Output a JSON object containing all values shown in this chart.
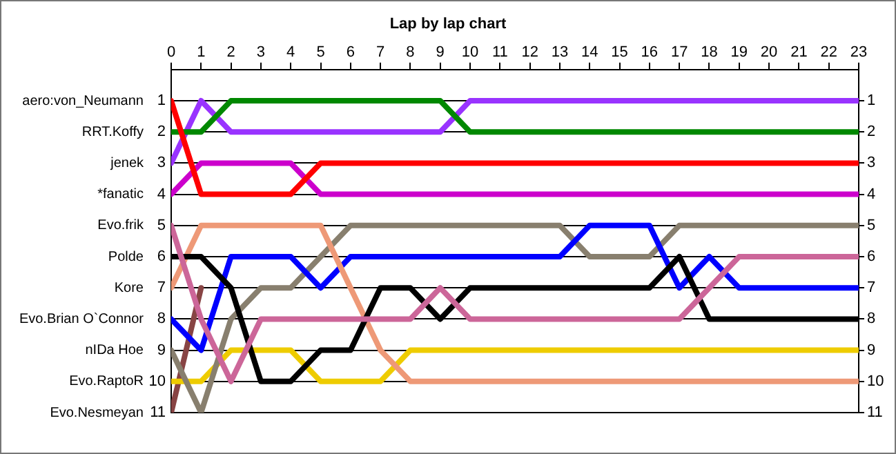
{
  "chart_data": {
    "type": "line",
    "title": "Lap by lap chart",
    "x": [
      0,
      1,
      2,
      3,
      4,
      5,
      6,
      7,
      8,
      9,
      10,
      11,
      12,
      13,
      14,
      15,
      16,
      17,
      18,
      19,
      20,
      21,
      22,
      23
    ],
    "xlim": [
      0,
      23
    ],
    "xticks": [
      0,
      1,
      2,
      3,
      4,
      5,
      6,
      7,
      8,
      9,
      10,
      11,
      12,
      13,
      14,
      15,
      16,
      17,
      18,
      19,
      20,
      21,
      22,
      23
    ],
    "ylim": [
      11,
      0
    ],
    "yticks": [
      1,
      2,
      3,
      4,
      5,
      6,
      7,
      8,
      9,
      10,
      11
    ],
    "y2lim": [
      11,
      0
    ],
    "y2ticks": [
      1,
      2,
      3,
      4,
      5,
      6,
      7,
      8,
      9,
      10,
      11
    ],
    "grid": "y",
    "legend": false,
    "marker": "none",
    "line_style": "solid",
    "series": [
      {
        "name": "aero:von_Neumann",
        "color": "#ff0000",
        "values": [
          1,
          4,
          4,
          4,
          4,
          3,
          3,
          3,
          3,
          3,
          3,
          3,
          3,
          3,
          3,
          3,
          3,
          3,
          3,
          3,
          3,
          3,
          3,
          3
        ]
      },
      {
        "name": "RRT.Koffy",
        "color": "#008800",
        "values": [
          2,
          2,
          1,
          1,
          1,
          1,
          1,
          1,
          1,
          1,
          2,
          2,
          2,
          2,
          2,
          2,
          2,
          2,
          2,
          2,
          2,
          2,
          2,
          2
        ]
      },
      {
        "name": "jenek",
        "color": "#9933ff",
        "values": [
          3,
          1,
          2,
          2,
          2,
          2,
          2,
          2,
          2,
          2,
          1,
          1,
          1,
          1,
          1,
          1,
          1,
          1,
          1,
          1,
          1,
          1,
          1,
          1
        ]
      },
      {
        "name": "*fanatic",
        "color": "#cc00cc",
        "values": [
          4,
          3,
          3,
          3,
          3,
          4,
          4,
          4,
          4,
          4,
          4,
          4,
          4,
          4,
          4,
          4,
          4,
          4,
          4,
          4,
          4,
          4,
          4,
          4
        ]
      },
      {
        "name": "Evo.frik",
        "color": "#cc6699",
        "values": [
          5,
          8,
          10,
          8,
          8,
          8,
          8,
          8,
          8,
          7,
          8,
          8,
          8,
          8,
          8,
          8,
          8,
          8,
          7,
          6,
          6,
          6,
          6,
          6
        ]
      },
      {
        "name": "Polde",
        "color": "#000000",
        "values": [
          6,
          6,
          7,
          10,
          10,
          9,
          9,
          7,
          7,
          8,
          7,
          7,
          7,
          7,
          7,
          7,
          7,
          6,
          8,
          8,
          8,
          8,
          8,
          8
        ]
      },
      {
        "name": "Kore",
        "color": "#ee9977",
        "values": [
          7,
          5,
          5,
          5,
          5,
          5,
          7,
          9,
          10,
          10,
          10,
          10,
          10,
          10,
          10,
          10,
          10,
          10,
          10,
          10,
          10,
          10,
          10,
          10
        ]
      },
      {
        "name": "Evo.Brian O`Connor",
        "color": "#0000ff",
        "values": [
          8,
          9,
          6,
          6,
          6,
          7,
          6,
          6,
          6,
          6,
          6,
          6,
          6,
          6,
          5,
          5,
          5,
          7,
          6,
          7,
          7,
          7,
          7,
          7
        ]
      },
      {
        "name": "nIDa Hoe",
        "color": "#887f6e",
        "values": [
          9,
          11,
          8,
          7,
          7,
          6,
          5,
          5,
          5,
          5,
          5,
          5,
          5,
          5,
          6,
          6,
          6,
          5,
          5,
          5,
          5,
          5,
          5,
          5
        ]
      },
      {
        "name": "Evo.RaptoR",
        "color": "#eecc00",
        "values": [
          10,
          10,
          9,
          9,
          9,
          10,
          10,
          10,
          9,
          9,
          9,
          9,
          9,
          9,
          9,
          9,
          9,
          9,
          9,
          9,
          9,
          9,
          9,
          9
        ]
      },
      {
        "name": "Evo.Nesmeyan",
        "color": "#884444",
        "values": [
          11,
          7,
          null,
          null,
          null,
          null,
          null,
          null,
          null,
          null,
          null,
          null,
          null,
          null,
          null,
          null,
          null,
          null,
          null,
          null,
          null,
          null,
          null,
          null
        ]
      }
    ]
  }
}
